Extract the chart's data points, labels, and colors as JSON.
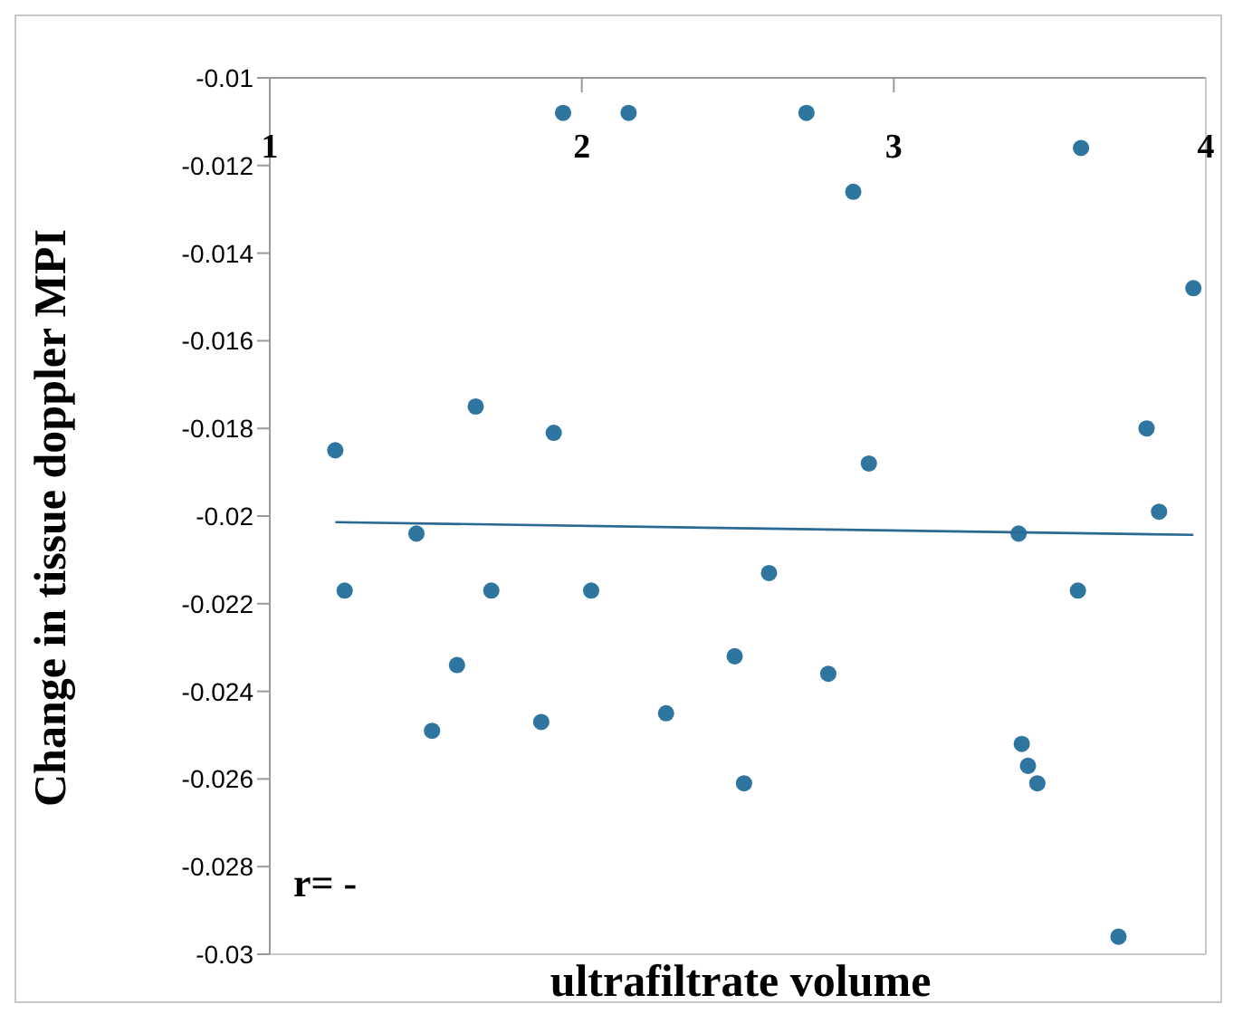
{
  "chart_data": {
    "type": "scatter",
    "xlabel": "ultrafiltrate volume",
    "ylabel": "Change in tissue doppler MPI",
    "annotations": [
      "r= -"
    ],
    "x": [
      1.21,
      1.24,
      1.47,
      1.52,
      1.6,
      1.66,
      1.71,
      1.87,
      1.91,
      1.94,
      2.03,
      2.15,
      2.27,
      2.49,
      2.52,
      2.6,
      2.72,
      2.79,
      2.87,
      2.92,
      3.4,
      3.41,
      3.43,
      3.46,
      3.59,
      3.6,
      3.72,
      3.81,
      3.85,
      3.96
    ],
    "series": [
      {
        "color": "#2e75a0",
        "values": [
          -0.0185,
          -0.0217,
          -0.0204,
          -0.0249,
          -0.0234,
          -0.0175,
          -0.0217,
          -0.0247,
          -0.0181,
          -0.0108,
          -0.0217,
          -0.0108,
          -0.0245,
          -0.0232,
          -0.0261,
          -0.0213,
          -0.0108,
          -0.0236,
          -0.0126,
          -0.0188,
          -0.0204,
          -0.0252,
          -0.0257,
          -0.0261,
          -0.0217,
          -0.0116,
          -0.0296,
          -0.018,
          -0.0199,
          -0.0148
        ]
      },
      {
        "type": "line",
        "marker": "none",
        "color": "#2a6a92",
        "x": [
          1.21,
          3.96
        ],
        "values": [
          -0.02014,
          -0.02043
        ]
      }
    ],
    "xlim": [
      1,
      4
    ],
    "xticks": [
      1,
      2,
      3,
      4
    ],
    "ylim": [
      -0.03,
      -0.01
    ],
    "yticks": [
      -0.03,
      -0.028,
      -0.026,
      -0.024,
      -0.022,
      -0.02,
      -0.018,
      -0.016,
      -0.014,
      -0.012,
      -0.01
    ],
    "grid": false,
    "legend": false,
    "marker": "circle",
    "line_style": "solid"
  }
}
